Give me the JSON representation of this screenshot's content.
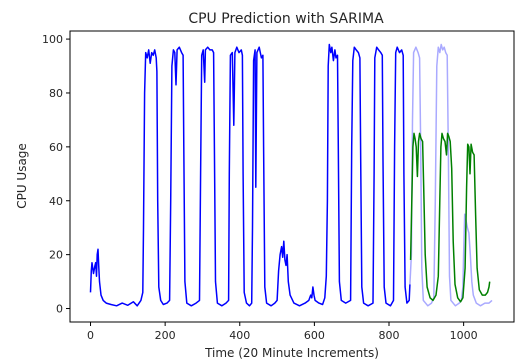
{
  "chart_data": {
    "type": "line",
    "title": "CPU Prediction with SARIMA",
    "xlabel": "Time (20 Minute Increments)",
    "ylabel": "CPU Usage",
    "xlim": [
      -55,
      1135
    ],
    "ylim": [
      -5,
      103
    ],
    "x_ticks": [
      0,
      200,
      400,
      600,
      800,
      1000
    ],
    "y_ticks": [
      0,
      20,
      40,
      60,
      80,
      100
    ],
    "grid": false,
    "legend": "none",
    "series": [
      {
        "role": "history",
        "color": "#0000ff",
        "alpha": 1.0,
        "points": [
          [
            0,
            6
          ],
          [
            2,
            14
          ],
          [
            4,
            17
          ],
          [
            8,
            13
          ],
          [
            12,
            16
          ],
          [
            14,
            17
          ],
          [
            16,
            12
          ],
          [
            18,
            20
          ],
          [
            20,
            22
          ],
          [
            22,
            16
          ],
          [
            24,
            10
          ],
          [
            28,
            5
          ],
          [
            34,
            3
          ],
          [
            42,
            2
          ],
          [
            55,
            1.5
          ],
          [
            70,
            1
          ],
          [
            85,
            2
          ],
          [
            100,
            1.2
          ],
          [
            115,
            2.5
          ],
          [
            125,
            1
          ],
          [
            135,
            3
          ],
          [
            140,
            6
          ],
          [
            142,
            30
          ],
          [
            145,
            80
          ],
          [
            148,
            95
          ],
          [
            152,
            93
          ],
          [
            156,
            96
          ],
          [
            160,
            91
          ],
          [
            164,
            95
          ],
          [
            168,
            94
          ],
          [
            172,
            96
          ],
          [
            176,
            93
          ],
          [
            178,
            88
          ],
          [
            180,
            40
          ],
          [
            183,
            8
          ],
          [
            188,
            3
          ],
          [
            195,
            1.5
          ],
          [
            205,
            2
          ],
          [
            212,
            3
          ],
          [
            215,
            40
          ],
          [
            218,
            90
          ],
          [
            222,
            96
          ],
          [
            226,
            95
          ],
          [
            229,
            83
          ],
          [
            232,
            96
          ],
          [
            238,
            97
          ],
          [
            244,
            95
          ],
          [
            248,
            94
          ],
          [
            250,
            60
          ],
          [
            253,
            10
          ],
          [
            258,
            2
          ],
          [
            270,
            1
          ],
          [
            283,
            2
          ],
          [
            292,
            3
          ],
          [
            295,
            50
          ],
          [
            298,
            94
          ],
          [
            302,
            96
          ],
          [
            306,
            84
          ],
          [
            308,
            96
          ],
          [
            314,
            97
          ],
          [
            320,
            96
          ],
          [
            326,
            96
          ],
          [
            330,
            95
          ],
          [
            332,
            60
          ],
          [
            335,
            10
          ],
          [
            340,
            2
          ],
          [
            352,
            1
          ],
          [
            363,
            2
          ],
          [
            370,
            3
          ],
          [
            372,
            50
          ],
          [
            375,
            94
          ],
          [
            380,
            95
          ],
          [
            384,
            68
          ],
          [
            387,
            95
          ],
          [
            392,
            97
          ],
          [
            398,
            95
          ],
          [
            404,
            96
          ],
          [
            407,
            94
          ],
          [
            409,
            50
          ],
          [
            412,
            6
          ],
          [
            418,
            2
          ],
          [
            426,
            1
          ],
          [
            432,
            2
          ],
          [
            434,
            30
          ],
          [
            437,
            92
          ],
          [
            441,
            96
          ],
          [
            443,
            45
          ],
          [
            446,
            95
          ],
          [
            452,
            97
          ],
          [
            458,
            93
          ],
          [
            462,
            94
          ],
          [
            464,
            60
          ],
          [
            467,
            8
          ],
          [
            472,
            2
          ],
          [
            484,
            1
          ],
          [
            494,
            2
          ],
          [
            500,
            3
          ],
          [
            504,
            14
          ],
          [
            508,
            20
          ],
          [
            512,
            23
          ],
          [
            515,
            19
          ],
          [
            518,
            25
          ],
          [
            521,
            18
          ],
          [
            524,
            16
          ],
          [
            527,
            20
          ],
          [
            530,
            10
          ],
          [
            535,
            5
          ],
          [
            545,
            2
          ],
          [
            560,
            1
          ],
          [
            575,
            2
          ],
          [
            585,
            3
          ],
          [
            590,
            5
          ],
          [
            593,
            4
          ],
          [
            596,
            8
          ],
          [
            599,
            5
          ],
          [
            602,
            3
          ],
          [
            612,
            2
          ],
          [
            622,
            1.5
          ],
          [
            628,
            4
          ],
          [
            632,
            12
          ],
          [
            635,
            40
          ],
          [
            637,
            90
          ],
          [
            640,
            98
          ],
          [
            644,
            95
          ],
          [
            647,
            97
          ],
          [
            651,
            92
          ],
          [
            655,
            96
          ],
          [
            658,
            93
          ],
          [
            662,
            94
          ],
          [
            664,
            60
          ],
          [
            667,
            10
          ],
          [
            672,
            3
          ],
          [
            684,
            2
          ],
          [
            697,
            3
          ],
          [
            700,
            60
          ],
          [
            703,
            92
          ],
          [
            707,
            97
          ],
          [
            712,
            96
          ],
          [
            718,
            95
          ],
          [
            722,
            93
          ],
          [
            724,
            55
          ],
          [
            727,
            8
          ],
          [
            732,
            2
          ],
          [
            744,
            1
          ],
          [
            757,
            2
          ],
          [
            760,
            50
          ],
          [
            762,
            93
          ],
          [
            767,
            97
          ],
          [
            772,
            96
          ],
          [
            778,
            95
          ],
          [
            782,
            94
          ],
          [
            784,
            55
          ],
          [
            787,
            8
          ],
          [
            792,
            2
          ],
          [
            804,
            1
          ],
          [
            812,
            3
          ],
          [
            815,
            60
          ],
          [
            818,
            95
          ],
          [
            822,
            97
          ],
          [
            828,
            95
          ],
          [
            834,
            96
          ],
          [
            838,
            94
          ],
          [
            840,
            50
          ],
          [
            843,
            8
          ],
          [
            848,
            2
          ],
          [
            854,
            3
          ],
          [
            856,
            9
          ]
        ]
      },
      {
        "role": "actual-overlay",
        "color": "#aaaaff",
        "alpha": 1.0,
        "points": [
          [
            856,
            9
          ],
          [
            860,
            20
          ],
          [
            863,
            70
          ],
          [
            866,
            95
          ],
          [
            872,
            97
          ],
          [
            878,
            95
          ],
          [
            882,
            93
          ],
          [
            885,
            60
          ],
          [
            888,
            15
          ],
          [
            892,
            3
          ],
          [
            904,
            1
          ],
          [
            914,
            2
          ],
          [
            920,
            4
          ],
          [
            924,
            40
          ],
          [
            928,
            90
          ],
          [
            932,
            97
          ],
          [
            936,
            95
          ],
          [
            940,
            98
          ],
          [
            944,
            96
          ],
          [
            948,
            97
          ],
          [
            952,
            95
          ],
          [
            956,
            94
          ],
          [
            959,
            60
          ],
          [
            962,
            12
          ],
          [
            966,
            3
          ],
          [
            978,
            1
          ],
          [
            988,
            2
          ],
          [
            994,
            3
          ],
          [
            998,
            8
          ],
          [
            1000,
            20
          ],
          [
            1003,
            35
          ],
          [
            1006,
            33
          ],
          [
            1010,
            30
          ],
          [
            1014,
            28
          ],
          [
            1018,
            20
          ],
          [
            1022,
            10
          ],
          [
            1026,
            5
          ],
          [
            1034,
            2
          ],
          [
            1045,
            1
          ],
          [
            1057,
            2
          ],
          [
            1068,
            2
          ],
          [
            1076,
            3
          ]
        ]
      },
      {
        "role": "forecast",
        "color": "#008000",
        "alpha": 1.0,
        "points": [
          [
            858,
            18
          ],
          [
            861,
            40
          ],
          [
            864,
            60
          ],
          [
            867,
            65
          ],
          [
            870,
            63
          ],
          [
            873,
            60
          ],
          [
            876,
            49
          ],
          [
            879,
            62
          ],
          [
            882,
            65
          ],
          [
            886,
            63
          ],
          [
            890,
            62
          ],
          [
            893,
            45
          ],
          [
            897,
            20
          ],
          [
            902,
            8
          ],
          [
            910,
            4
          ],
          [
            918,
            3
          ],
          [
            926,
            5
          ],
          [
            932,
            12
          ],
          [
            936,
            40
          ],
          [
            939,
            60
          ],
          [
            942,
            65
          ],
          [
            946,
            63
          ],
          [
            950,
            62
          ],
          [
            954,
            57
          ],
          [
            957,
            65
          ],
          [
            960,
            64
          ],
          [
            964,
            62
          ],
          [
            968,
            52
          ],
          [
            972,
            25
          ],
          [
            977,
            9
          ],
          [
            984,
            4
          ],
          [
            992,
            2.5
          ],
          [
            998,
            4
          ],
          [
            1004,
            15
          ],
          [
            1008,
            45
          ],
          [
            1011,
            61
          ],
          [
            1014,
            60
          ],
          [
            1017,
            50
          ],
          [
            1020,
            61
          ],
          [
            1024,
            58
          ],
          [
            1028,
            57
          ],
          [
            1032,
            35
          ],
          [
            1036,
            15
          ],
          [
            1042,
            7
          ],
          [
            1050,
            5
          ],
          [
            1058,
            5
          ],
          [
            1064,
            6
          ],
          [
            1068,
            8
          ],
          [
            1070,
            10
          ]
        ]
      }
    ]
  }
}
